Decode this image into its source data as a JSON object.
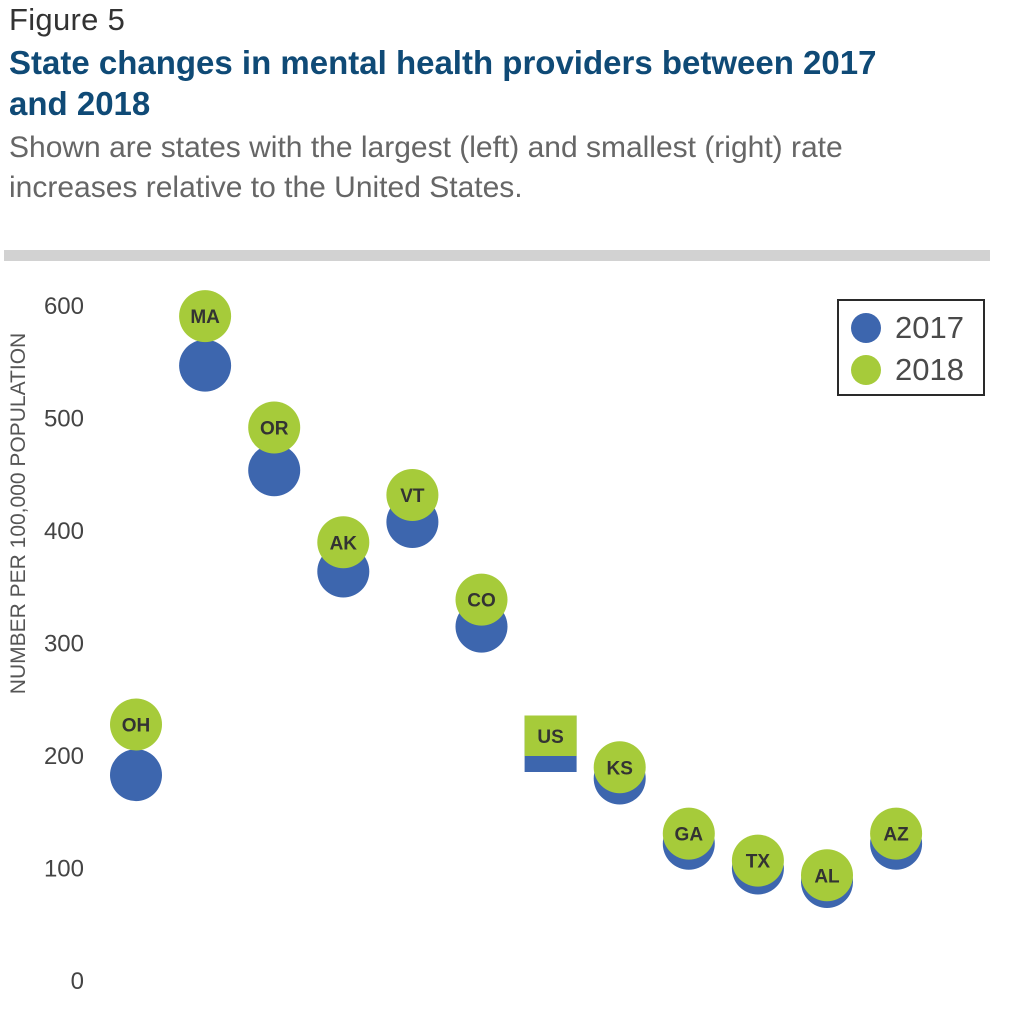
{
  "figure_label": "Figure 5",
  "title": "State changes in mental health providers between 2017 and 2018",
  "subtitle": "Shown are states with the largest (left) and smallest (right) rate increases relative to the United States.",
  "colors": {
    "series_2017": "#3d66ae",
    "series_2018": "#a6cb3a",
    "label_text": "#333333",
    "title": "#0f4a76"
  },
  "chart_data": {
    "type": "scatter",
    "ylabel": "NUMBER PER 100,000 POPULATION",
    "ylim": [
      0,
      600
    ],
    "yticks": [
      0,
      100,
      200,
      300,
      400,
      500,
      600
    ],
    "legend_position": "top-right",
    "categories": [
      "OH",
      "MA",
      "OR",
      "AK",
      "VT",
      "CO",
      "US",
      "KS",
      "GA",
      "TX",
      "AL",
      "AZ"
    ],
    "series": [
      {
        "name": "2017",
        "values": [
          183,
          547,
          454,
          364,
          408,
          315,
          200,
          180,
          122,
          100,
          88,
          122
        ]
      },
      {
        "name": "2018",
        "values": [
          228,
          591,
          492,
          390,
          432,
          339,
          236,
          190,
          131,
          107,
          94,
          131
        ]
      }
    ],
    "markers": [
      "circle",
      "circle",
      "circle",
      "circle",
      "circle",
      "circle",
      "bar",
      "circle",
      "circle",
      "circle",
      "circle",
      "circle"
    ]
  }
}
